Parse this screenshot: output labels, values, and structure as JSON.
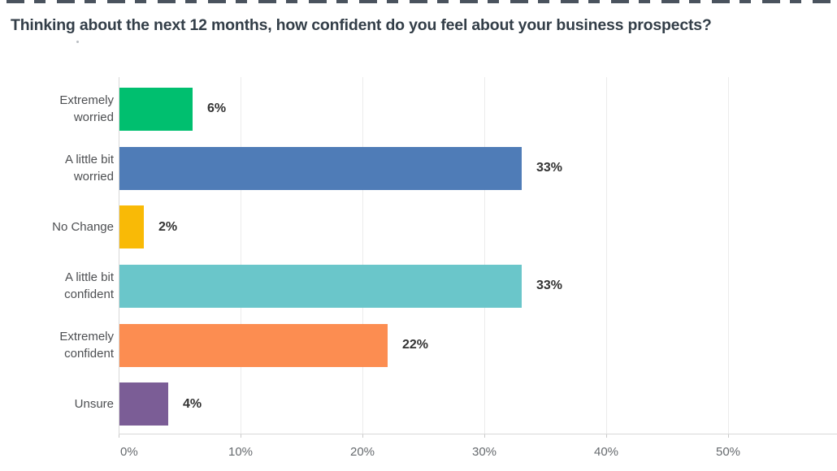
{
  "page": {
    "background": "#ffffff"
  },
  "header": {
    "title": "Thinking about the next 12 months, how confident do you feel about your business prospects?",
    "title_color": "#333e48"
  },
  "chart_data": {
    "type": "bar",
    "orientation": "horizontal",
    "title": "Thinking about the next 12 months, how confident do you feel about your business prospects?",
    "categories": [
      "Extremely worried",
      "A little bit worried",
      "No Change",
      "A little bit confident",
      "Extremely confident",
      "Unsure"
    ],
    "values": [
      6,
      33,
      2,
      33,
      22,
      4
    ],
    "value_labels": [
      "6%",
      "33%",
      "2%",
      "33%",
      "22%",
      "4%"
    ],
    "bar_colors": [
      "#00BF6F",
      "#4F7CB7",
      "#F9BA06",
      "#6AC6CA",
      "#FC8D51",
      "#7B5D96"
    ],
    "x_ticks": [
      "0%",
      "10%",
      "20%",
      "30%",
      "40%",
      "50%"
    ],
    "x_tick_values": [
      0,
      10,
      20,
      30,
      40,
      50
    ],
    "xlim": [
      0,
      58.9
    ],
    "xlabel": "",
    "ylabel": "",
    "grid": true,
    "legend": "none",
    "colors": {
      "grid": "#ebebeb",
      "axis": "#d8d8d8",
      "category_label": "#4d4f52",
      "tick_label": "#666a6e",
      "value_label": "#333333"
    }
  }
}
